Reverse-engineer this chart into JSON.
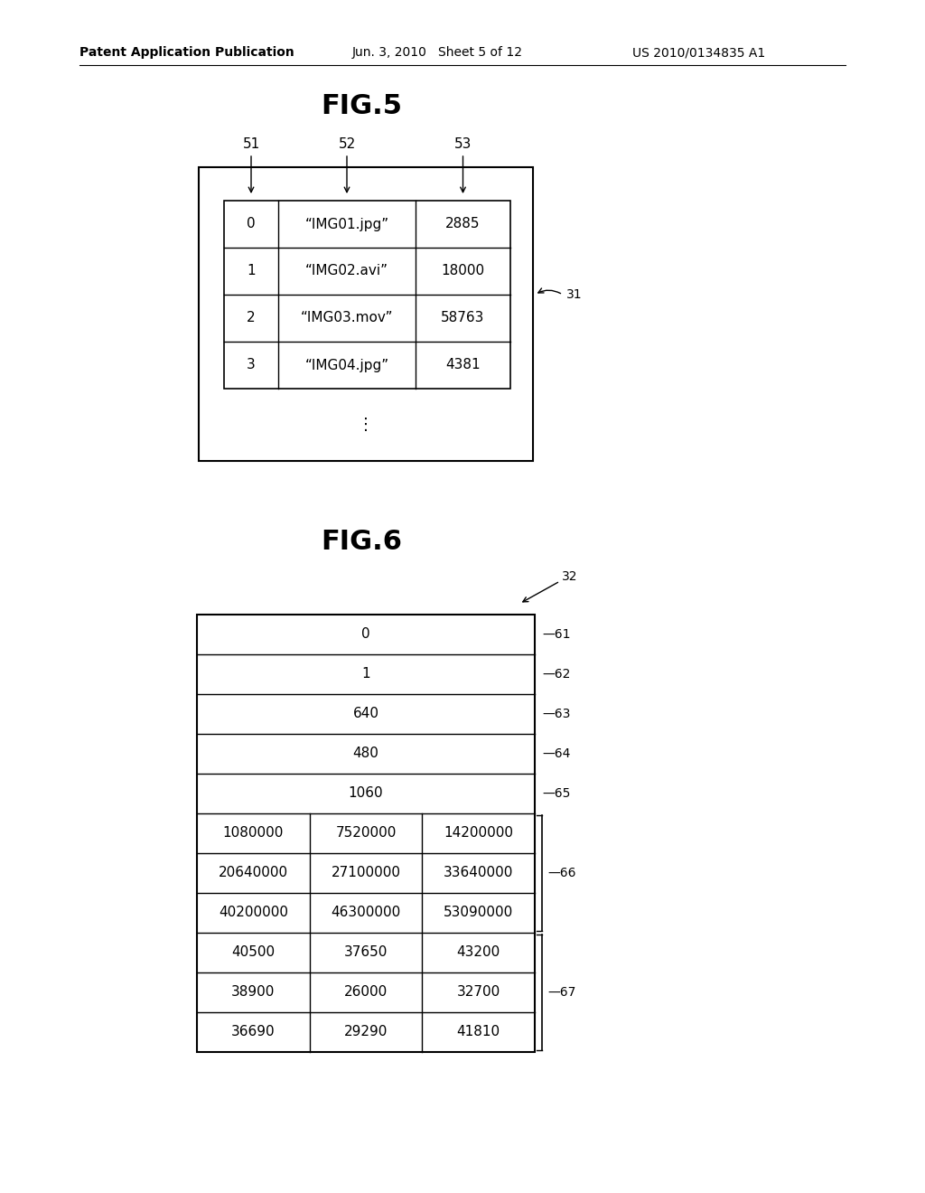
{
  "header_text_left": "Patent Application Publication",
  "header_text_mid": "Jun. 3, 2010   Sheet 5 of 12",
  "header_text_right": "US 2010/0134835 A1",
  "fig5_title": "FIG.5",
  "fig6_title": "FIG.6",
  "fig5_col_labels": [
    "51",
    "52",
    "53"
  ],
  "fig5_rows": [
    [
      "0",
      "“IMG01.jpg”",
      "2885"
    ],
    [
      "1",
      "“IMG02.avi”",
      "18000"
    ],
    [
      "2",
      "“IMG03.mov”",
      "58763"
    ],
    [
      "3",
      "“IMG04.jpg”",
      "4381"
    ]
  ],
  "fig5_label": "31",
  "fig6_single_rows": [
    [
      "0",
      "61"
    ],
    [
      "1",
      "62"
    ],
    [
      "640",
      "63"
    ],
    [
      "480",
      "64"
    ],
    [
      "1060",
      "65"
    ]
  ],
  "fig6_triple_rows_66": [
    [
      "1080000",
      "7520000",
      "14200000"
    ],
    [
      "20640000",
      "27100000",
      "33640000"
    ],
    [
      "40200000",
      "46300000",
      "53090000"
    ]
  ],
  "fig6_triple_rows_67": [
    [
      "40500",
      "37650",
      "43200"
    ],
    [
      "38900",
      "26000",
      "32700"
    ],
    [
      "36690",
      "29290",
      "41810"
    ]
  ],
  "fig6_label": "32",
  "bg_color": "#ffffff",
  "line_color": "#000000",
  "text_color": "#000000",
  "font_size_header": 10,
  "font_size_title": 22,
  "font_size_cell": 11,
  "font_size_ref": 10,
  "font_size_col_label": 11
}
